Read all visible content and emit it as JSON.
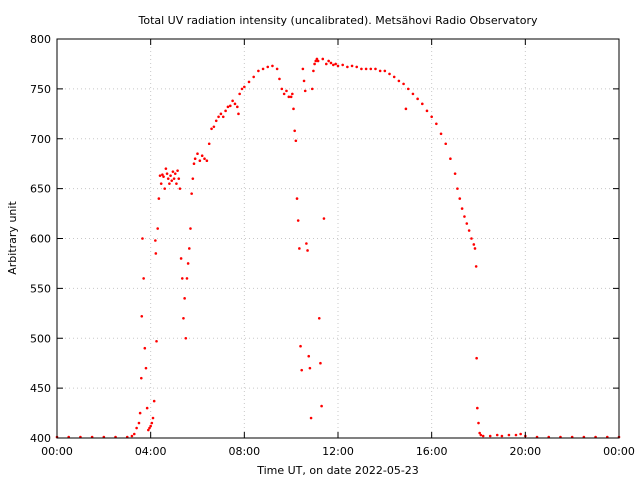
{
  "chart_data": {
    "type": "scatter",
    "title": "Total UV radiation intensity (uncalibrated). Metsähovi Radio Observatory",
    "xlabel": "Time UT, on date 2022-05-23",
    "ylabel": "Arbitrary unit",
    "x_unit": "hours UT",
    "xlim": [
      0,
      24
    ],
    "ylim": [
      400,
      800
    ],
    "x_ticks": [
      {
        "value": 0,
        "label": "00:00"
      },
      {
        "value": 4,
        "label": "04:00"
      },
      {
        "value": 8,
        "label": "08:00"
      },
      {
        "value": 12,
        "label": "12:00"
      },
      {
        "value": 16,
        "label": "16:00"
      },
      {
        "value": 20,
        "label": "20:00"
      },
      {
        "value": 24,
        "label": "00:00"
      }
    ],
    "y_ticks": [
      {
        "value": 400,
        "label": "400"
      },
      {
        "value": 450,
        "label": "450"
      },
      {
        "value": 500,
        "label": "500"
      },
      {
        "value": 550,
        "label": "550"
      },
      {
        "value": 600,
        "label": "600"
      },
      {
        "value": 650,
        "label": "650"
      },
      {
        "value": 700,
        "label": "700"
      },
      {
        "value": 750,
        "label": "750"
      },
      {
        "value": 800,
        "label": "800"
      }
    ],
    "grid": true,
    "marker_color": "#ff0000",
    "series": [
      {
        "points": [
          [
            0.0,
            401
          ],
          [
            0.5,
            401
          ],
          [
            1.0,
            401
          ],
          [
            1.5,
            401
          ],
          [
            2.0,
            401
          ],
          [
            2.5,
            401
          ],
          [
            3.0,
            401
          ],
          [
            3.2,
            402
          ],
          [
            3.3,
            404
          ],
          [
            3.4,
            410
          ],
          [
            3.5,
            415
          ],
          [
            3.55,
            425
          ],
          [
            3.6,
            460
          ],
          [
            3.62,
            522
          ],
          [
            3.65,
            600
          ],
          [
            3.7,
            560
          ],
          [
            3.75,
            490
          ],
          [
            3.8,
            470
          ],
          [
            3.85,
            430
          ],
          [
            3.9,
            408
          ],
          [
            3.95,
            410
          ],
          [
            4.0,
            412
          ],
          [
            4.05,
            415
          ],
          [
            4.1,
            420
          ],
          [
            4.15,
            437
          ],
          [
            4.2,
            598
          ],
          [
            4.22,
            585
          ],
          [
            4.25,
            497
          ],
          [
            4.3,
            610
          ],
          [
            4.35,
            640
          ],
          [
            4.4,
            663
          ],
          [
            4.45,
            655
          ],
          [
            4.5,
            664
          ],
          [
            4.55,
            662
          ],
          [
            4.6,
            650
          ],
          [
            4.65,
            670
          ],
          [
            4.7,
            665
          ],
          [
            4.75,
            660
          ],
          [
            4.8,
            655
          ],
          [
            4.85,
            663
          ],
          [
            4.9,
            658
          ],
          [
            4.95,
            667
          ],
          [
            5.0,
            660
          ],
          [
            5.05,
            665
          ],
          [
            5.1,
            655
          ],
          [
            5.15,
            668
          ],
          [
            5.2,
            660
          ],
          [
            5.25,
            650
          ],
          [
            5.3,
            580
          ],
          [
            5.35,
            560
          ],
          [
            5.4,
            520
          ],
          [
            5.45,
            540
          ],
          [
            5.5,
            500
          ],
          [
            5.55,
            560
          ],
          [
            5.6,
            575
          ],
          [
            5.65,
            590
          ],
          [
            5.7,
            610
          ],
          [
            5.75,
            645
          ],
          [
            5.8,
            660
          ],
          [
            5.85,
            675
          ],
          [
            5.9,
            680
          ],
          [
            6.0,
            685
          ],
          [
            6.1,
            678
          ],
          [
            6.2,
            683
          ],
          [
            6.3,
            680
          ],
          [
            6.4,
            678
          ],
          [
            6.5,
            695
          ],
          [
            6.6,
            710
          ],
          [
            6.7,
            712
          ],
          [
            6.8,
            718
          ],
          [
            6.9,
            722
          ],
          [
            7.0,
            725
          ],
          [
            7.1,
            722
          ],
          [
            7.2,
            728
          ],
          [
            7.3,
            732
          ],
          [
            7.4,
            733
          ],
          [
            7.5,
            738
          ],
          [
            7.6,
            735
          ],
          [
            7.7,
            732
          ],
          [
            7.75,
            725
          ],
          [
            7.8,
            745
          ],
          [
            7.9,
            750
          ],
          [
            8.0,
            752
          ],
          [
            8.2,
            757
          ],
          [
            8.4,
            762
          ],
          [
            8.6,
            768
          ],
          [
            8.8,
            770
          ],
          [
            9.0,
            772
          ],
          [
            9.2,
            773
          ],
          [
            9.4,
            770
          ],
          [
            9.5,
            760
          ],
          [
            9.6,
            750
          ],
          [
            9.7,
            745
          ],
          [
            9.8,
            748
          ],
          [
            9.9,
            742
          ],
          [
            10.0,
            742
          ],
          [
            10.05,
            745
          ],
          [
            10.1,
            730
          ],
          [
            10.15,
            708
          ],
          [
            10.2,
            698
          ],
          [
            10.25,
            640
          ],
          [
            10.3,
            618
          ],
          [
            10.35,
            590
          ],
          [
            10.4,
            492
          ],
          [
            10.45,
            468
          ],
          [
            10.5,
            770
          ],
          [
            10.55,
            758
          ],
          [
            10.6,
            748
          ],
          [
            10.65,
            595
          ],
          [
            10.7,
            588
          ],
          [
            10.75,
            482
          ],
          [
            10.8,
            470
          ],
          [
            10.85,
            420
          ],
          [
            10.9,
            750
          ],
          [
            10.95,
            768
          ],
          [
            11.0,
            775
          ],
          [
            11.05,
            778
          ],
          [
            11.1,
            780
          ],
          [
            11.15,
            778
          ],
          [
            11.2,
            520
          ],
          [
            11.25,
            475
          ],
          [
            11.3,
            432
          ],
          [
            11.35,
            780
          ],
          [
            11.4,
            620
          ],
          [
            11.5,
            775
          ],
          [
            11.6,
            778
          ],
          [
            11.7,
            776
          ],
          [
            11.8,
            774
          ],
          [
            11.9,
            775
          ],
          [
            12.0,
            773
          ],
          [
            12.2,
            774
          ],
          [
            12.4,
            772
          ],
          [
            12.6,
            773
          ],
          [
            12.8,
            772
          ],
          [
            13.0,
            770
          ],
          [
            13.2,
            770
          ],
          [
            13.4,
            770
          ],
          [
            13.6,
            770
          ],
          [
            13.8,
            768
          ],
          [
            14.0,
            768
          ],
          [
            14.2,
            765
          ],
          [
            14.4,
            762
          ],
          [
            14.6,
            758
          ],
          [
            14.8,
            755
          ],
          [
            14.9,
            730
          ],
          [
            15.0,
            750
          ],
          [
            15.2,
            745
          ],
          [
            15.4,
            740
          ],
          [
            15.6,
            735
          ],
          [
            15.8,
            728
          ],
          [
            16.0,
            722
          ],
          [
            16.2,
            715
          ],
          [
            16.4,
            705
          ],
          [
            16.6,
            695
          ],
          [
            16.8,
            680
          ],
          [
            17.0,
            665
          ],
          [
            17.1,
            650
          ],
          [
            17.2,
            640
          ],
          [
            17.3,
            630
          ],
          [
            17.4,
            622
          ],
          [
            17.5,
            615
          ],
          [
            17.6,
            608
          ],
          [
            17.7,
            600
          ],
          [
            17.8,
            594
          ],
          [
            17.85,
            590
          ],
          [
            17.9,
            572
          ],
          [
            17.92,
            480
          ],
          [
            17.95,
            430
          ],
          [
            18.0,
            415
          ],
          [
            18.05,
            405
          ],
          [
            18.1,
            403
          ],
          [
            18.2,
            402
          ],
          [
            18.5,
            402
          ],
          [
            18.8,
            403
          ],
          [
            19.0,
            402
          ],
          [
            19.3,
            403
          ],
          [
            19.6,
            403
          ],
          [
            19.8,
            404
          ],
          [
            20.0,
            402
          ],
          [
            20.5,
            401
          ],
          [
            21.0,
            401
          ],
          [
            21.5,
            401
          ],
          [
            22.0,
            401
          ],
          [
            22.5,
            401
          ],
          [
            23.0,
            401
          ],
          [
            23.5,
            401
          ],
          [
            24.0,
            401
          ]
        ]
      }
    ]
  }
}
